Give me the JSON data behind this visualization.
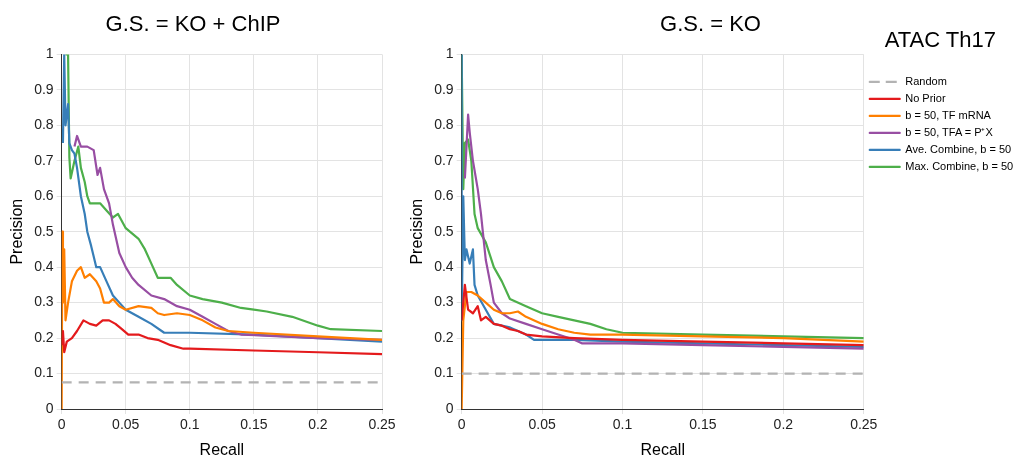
{
  "chart_data": [
    {
      "type": "line",
      "title": "G.S. = KO + ChIP",
      "xlabel": "Recall",
      "ylabel": "Precision",
      "xlim": [
        0,
        0.25
      ],
      "ylim": [
        0,
        1
      ],
      "xticks": [
        0,
        0.05,
        0.1,
        0.15,
        0.2,
        0.25
      ],
      "yticks": [
        0,
        0.1,
        0.2,
        0.3,
        0.4,
        0.5,
        0.6,
        0.7,
        0.8,
        0.9,
        1
      ],
      "grid": true,
      "legend": false,
      "series": [
        {
          "color": "#b3b3b3",
          "line_style": "dashed",
          "x": [
            0,
            0.25
          ],
          "values": [
            0.075,
            0.075
          ]
        },
        {
          "color": "#e41a1c",
          "x": [
            0,
            0.001,
            0.002,
            0.004,
            0.008,
            0.012,
            0.017,
            0.022,
            0.027,
            0.032,
            0.037,
            0.042,
            0.047,
            0.052,
            0.06,
            0.067,
            0.075,
            0.085,
            0.095,
            0.1,
            0.15,
            0.2,
            0.25
          ],
          "values": [
            0.18,
            0.22,
            0.16,
            0.19,
            0.2,
            0.22,
            0.25,
            0.24,
            0.235,
            0.25,
            0.25,
            0.24,
            0.225,
            0.21,
            0.21,
            0.2,
            0.195,
            0.18,
            0.17,
            0.17,
            0.165,
            0.16,
            0.155
          ]
        },
        {
          "color": "#ff7f00",
          "x": [
            0,
            0.0005,
            0.001,
            0.002,
            0.003,
            0.005,
            0.008,
            0.012,
            0.015,
            0.018,
            0.022,
            0.027,
            0.03,
            0.033,
            0.037,
            0.04,
            0.045,
            0.05,
            0.06,
            0.07,
            0.075,
            0.08,
            0.09,
            0.1,
            0.11,
            0.12,
            0.13,
            0.15,
            0.2,
            0.25
          ],
          "values": [
            0,
            0.5,
            0.3,
            0.45,
            0.25,
            0.3,
            0.36,
            0.39,
            0.4,
            0.37,
            0.38,
            0.36,
            0.34,
            0.3,
            0.3,
            0.31,
            0.29,
            0.28,
            0.29,
            0.285,
            0.27,
            0.265,
            0.27,
            0.265,
            0.25,
            0.23,
            0.22,
            0.215,
            0.205,
            0.195
          ]
        },
        {
          "color": "#984ea3",
          "x": [
            0.01,
            0.012,
            0.015,
            0.02,
            0.025,
            0.028,
            0.03,
            0.033,
            0.037,
            0.04,
            0.045,
            0.05,
            0.055,
            0.06,
            0.07,
            0.08,
            0.09,
            0.1,
            0.11,
            0.12,
            0.13,
            0.14,
            0.2,
            0.25
          ],
          "values": [
            0.74,
            0.77,
            0.74,
            0.74,
            0.73,
            0.66,
            0.68,
            0.62,
            0.58,
            0.52,
            0.44,
            0.4,
            0.37,
            0.35,
            0.32,
            0.31,
            0.29,
            0.28,
            0.26,
            0.24,
            0.22,
            0.21,
            0.2,
            0.195
          ]
        },
        {
          "color": "#377eb8",
          "x": [
            0.001,
            0.002,
            0.003,
            0.005,
            0.006,
            0.008,
            0.01,
            0.012,
            0.015,
            0.018,
            0.02,
            0.023,
            0.025,
            0.027,
            0.03,
            0.035,
            0.04,
            0.045,
            0.05,
            0.06,
            0.07,
            0.08,
            0.09,
            0.1,
            0.15,
            0.2,
            0.25
          ],
          "values": [
            0.75,
            1,
            0.8,
            0.86,
            0.75,
            0.73,
            0.72,
            0.68,
            0.6,
            0.55,
            0.5,
            0.46,
            0.43,
            0.4,
            0.4,
            0.36,
            0.32,
            0.3,
            0.28,
            0.26,
            0.24,
            0.215,
            0.215,
            0.215,
            0.21,
            0.2,
            0.19
          ]
        },
        {
          "color": "#4daf4a",
          "x": [
            0.003,
            0.005,
            0.006,
            0.007,
            0.01,
            0.013,
            0.015,
            0.018,
            0.02,
            0.022,
            0.03,
            0.035,
            0.04,
            0.044,
            0.05,
            0.06,
            0.065,
            0.07,
            0.075,
            0.085,
            0.09,
            0.1,
            0.11,
            0.125,
            0.14,
            0.15,
            0.16,
            0.18,
            0.2,
            0.21,
            0.25
          ],
          "values": [
            1,
            1,
            0.71,
            0.65,
            0.7,
            0.74,
            0.68,
            0.64,
            0.6,
            0.58,
            0.58,
            0.56,
            0.54,
            0.55,
            0.51,
            0.48,
            0.45,
            0.41,
            0.37,
            0.37,
            0.35,
            0.32,
            0.31,
            0.3,
            0.285,
            0.28,
            0.275,
            0.26,
            0.235,
            0.225,
            0.22
          ]
        }
      ]
    },
    {
      "type": "line",
      "title": "G.S. = KO",
      "xlabel": "Recall",
      "ylabel": "Precision",
      "xlim": [
        0,
        0.25
      ],
      "ylim": [
        0,
        1
      ],
      "xticks": [
        0,
        0.05,
        0.1,
        0.15,
        0.2,
        0.25
      ],
      "yticks": [
        0,
        0.1,
        0.2,
        0.3,
        0.4,
        0.5,
        0.6,
        0.7,
        0.8,
        0.9,
        1
      ],
      "grid": true,
      "legend": "right",
      "legend_title": "ATAC Th17",
      "series": [
        {
          "name": "Random",
          "color": "#b3b3b3",
          "line_style": "dashed",
          "x": [
            0,
            0.25
          ],
          "values": [
            0.1,
            0.1
          ]
        },
        {
          "name": "No Prior",
          "color": "#e41a1c",
          "x": [
            0,
            0.002,
            0.004,
            0.007,
            0.01,
            0.012,
            0.015,
            0.02,
            0.025,
            0.03,
            0.035,
            0.04,
            0.05,
            0.07,
            0.1,
            0.15,
            0.2,
            0.25
          ],
          "values": [
            0.25,
            0.35,
            0.28,
            0.27,
            0.29,
            0.25,
            0.26,
            0.24,
            0.235,
            0.225,
            0.22,
            0.21,
            0.205,
            0.2,
            0.195,
            0.19,
            0.185,
            0.18
          ]
        },
        {
          "name": "b = 50, TF mRNA",
          "color": "#ff7f00",
          "x": [
            0,
            0.001,
            0.003,
            0.006,
            0.01,
            0.015,
            0.02,
            0.025,
            0.03,
            0.035,
            0.04,
            0.05,
            0.06,
            0.07,
            0.08,
            0.1,
            0.15,
            0.2,
            0.25
          ],
          "values": [
            0,
            0.25,
            0.33,
            0.33,
            0.32,
            0.3,
            0.28,
            0.27,
            0.27,
            0.275,
            0.26,
            0.24,
            0.225,
            0.215,
            0.21,
            0.21,
            0.205,
            0.2,
            0.19
          ]
        },
        {
          "name": "b = 50, TFA = P⁺X",
          "color": "#984ea3",
          "x": [
            0.002,
            0.004,
            0.005,
            0.007,
            0.01,
            0.012,
            0.015,
            0.018,
            0.02,
            0.025,
            0.03,
            0.04,
            0.05,
            0.06,
            0.07,
            0.075,
            0.1,
            0.15,
            0.2,
            0.25
          ],
          "values": [
            0.65,
            0.83,
            0.78,
            0.7,
            0.62,
            0.55,
            0.42,
            0.35,
            0.3,
            0.27,
            0.255,
            0.24,
            0.225,
            0.21,
            0.195,
            0.185,
            0.185,
            0.18,
            0.175,
            0.17
          ]
        },
        {
          "name": "Ave. Combine, b = 50",
          "color": "#377eb8",
          "x": [
            0,
            0,
            0.001,
            0.002,
            0.003,
            0.005,
            0.007,
            0.008,
            0.01,
            0.015,
            0.02,
            0.03,
            0.04,
            0.045,
            0.05,
            0.07,
            0.1,
            0.15,
            0.2,
            0.25
          ],
          "values": [
            1,
            0.25,
            0.6,
            0.42,
            0.45,
            0.41,
            0.45,
            0.35,
            0.32,
            0.28,
            0.24,
            0.23,
            0.21,
            0.195,
            0.195,
            0.195,
            0.19,
            0.185,
            0.18,
            0.175
          ]
        },
        {
          "name": "Max. Combine, b = 50",
          "color": "#4daf4a",
          "x": [
            0,
            0.001,
            0.002,
            0.004,
            0.006,
            0.008,
            0.01,
            0.015,
            0.02,
            0.025,
            0.03,
            0.04,
            0.05,
            0.06,
            0.07,
            0.08,
            0.09,
            0.1,
            0.15,
            0.2,
            0.25
          ],
          "values": [
            1,
            0.62,
            0.75,
            0.76,
            0.7,
            0.55,
            0.51,
            0.47,
            0.4,
            0.36,
            0.31,
            0.29,
            0.27,
            0.26,
            0.25,
            0.24,
            0.225,
            0.215,
            0.21,
            0.205,
            0.2
          ]
        }
      ]
    }
  ]
}
